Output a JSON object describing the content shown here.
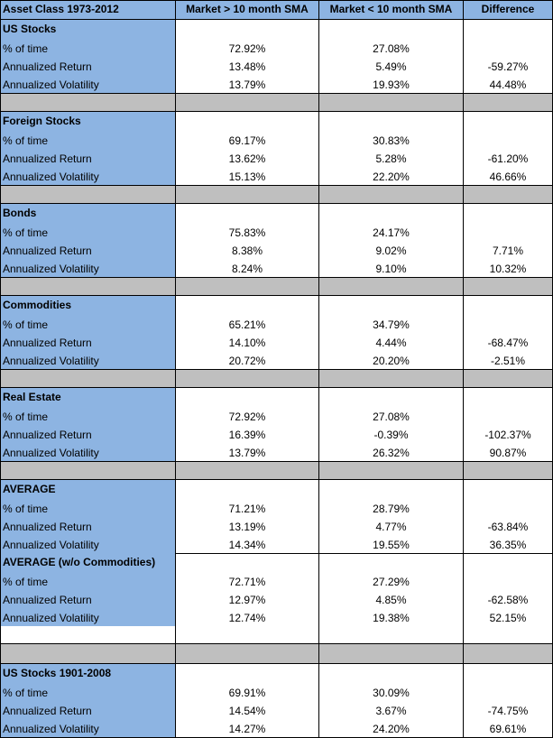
{
  "header": {
    "col0": "Asset Class 1973-2012",
    "col1": "Market > 10 month SMA",
    "col2": "Market < 10 month SMA",
    "col3": "Difference"
  },
  "labels": {
    "pct": "% of time",
    "ret": "Annualized Return",
    "vol": "Annualized Volatility"
  },
  "sections": [
    {
      "title": "US Stocks",
      "pct": [
        "72.92%",
        "27.08%",
        ""
      ],
      "ret": [
        "13.48%",
        "5.49%",
        "-59.27%"
      ],
      "vol": [
        "13.79%",
        "19.93%",
        "44.48%"
      ]
    },
    {
      "title": "Foreign Stocks",
      "pct": [
        "69.17%",
        "30.83%",
        ""
      ],
      "ret": [
        "13.62%",
        "5.28%",
        "-61.20%"
      ],
      "vol": [
        "15.13%",
        "22.20%",
        "46.66%"
      ]
    },
    {
      "title": "Bonds",
      "pct": [
        "75.83%",
        "24.17%",
        ""
      ],
      "ret": [
        "8.38%",
        "9.02%",
        "7.71%"
      ],
      "vol": [
        "8.24%",
        "9.10%",
        "10.32%"
      ]
    },
    {
      "title": "Commodities",
      "pct": [
        "65.21%",
        "34.79%",
        ""
      ],
      "ret": [
        "14.10%",
        "4.44%",
        "-68.47%"
      ],
      "vol": [
        "20.72%",
        "20.20%",
        "-2.51%"
      ]
    },
    {
      "title": "Real Estate",
      "pct": [
        "72.92%",
        "27.08%",
        ""
      ],
      "ret": [
        "16.39%",
        "-0.39%",
        "-102.37%"
      ],
      "vol": [
        "13.79%",
        "26.32%",
        "90.87%"
      ]
    },
    {
      "title": "AVERAGE",
      "pct": [
        "71.21%",
        "28.79%",
        ""
      ],
      "ret": [
        "13.19%",
        "4.77%",
        "-63.84%"
      ],
      "vol": [
        "14.34%",
        "19.55%",
        "36.35%"
      ]
    },
    {
      "title": "AVERAGE (w/o Commodities)",
      "pct": [
        "72.71%",
        "27.29%",
        ""
      ],
      "ret": [
        "12.97%",
        "4.85%",
        "-62.58%"
      ],
      "vol": [
        "12.74%",
        "19.38%",
        "52.15%"
      ]
    },
    {
      "title": "US Stocks 1901-2008",
      "pct": [
        "69.91%",
        "30.09%",
        ""
      ],
      "ret": [
        "14.54%",
        "3.67%",
        "-74.75%"
      ],
      "vol": [
        "14.27%",
        "24.20%",
        "69.61%"
      ]
    }
  ]
}
